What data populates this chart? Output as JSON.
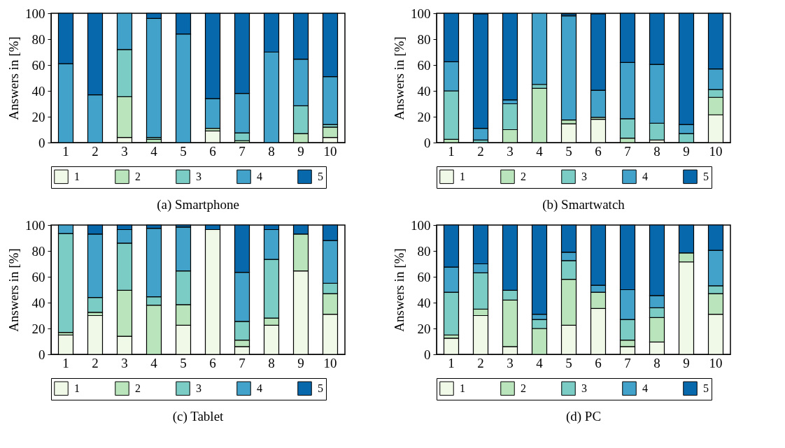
{
  "chart_data": [
    {
      "type": "bar",
      "stacked": true,
      "title": "(a) Smartphone",
      "ylabel": "Answers in [%]",
      "categories": [
        "1",
        "2",
        "3",
        "4",
        "5",
        "6",
        "7",
        "8",
        "9",
        "10"
      ],
      "ylim": [
        0,
        100
      ],
      "yticks": [
        0,
        20,
        40,
        60,
        80,
        100
      ],
      "legend": "bottom",
      "grid": false,
      "series": [
        {
          "name": "1",
          "color": "#f0f9e8",
          "values": [
            0,
            0,
            4,
            0,
            0,
            9,
            0,
            0,
            0,
            4
          ]
        },
        {
          "name": "2",
          "color": "#bae4bc",
          "values": [
            0,
            0,
            31.5,
            2.5,
            0,
            2,
            1.5,
            0,
            7,
            8
          ]
        },
        {
          "name": "3",
          "color": "#7bccc4",
          "values": [
            0,
            0,
            36.5,
            1.5,
            0,
            0,
            6,
            0,
            21.5,
            2
          ]
        },
        {
          "name": "4",
          "color": "#43a2ca",
          "values": [
            61,
            37,
            28,
            92,
            84,
            23,
            30.5,
            70,
            36,
            37
          ]
        },
        {
          "name": "5",
          "color": "#0868ac",
          "values": [
            39,
            63,
            0,
            4,
            16,
            66,
            62,
            30,
            35.5,
            49
          ]
        }
      ]
    },
    {
      "type": "bar",
      "stacked": true,
      "title": "(b) Smartwatch",
      "ylabel": "Answers in [%]",
      "categories": [
        "1",
        "2",
        "3",
        "4",
        "5",
        "6",
        "7",
        "8",
        "9",
        "10"
      ],
      "ylim": [
        0,
        100
      ],
      "yticks": [
        0,
        20,
        40,
        60,
        80,
        100
      ],
      "legend": "bottom",
      "grid": false,
      "series": [
        {
          "name": "1",
          "color": "#f0f9e8",
          "values": [
            0,
            0,
            0,
            0,
            14.5,
            18,
            0,
            2,
            0,
            21.5
          ]
        },
        {
          "name": "2",
          "color": "#bae4bc",
          "values": [
            2.5,
            null,
            10,
            42,
            3,
            1.5,
            3.5,
            0,
            0,
            13.5
          ]
        },
        {
          "name": "3",
          "color": "#7bccc4",
          "values": [
            37.5,
            2,
            20,
            3,
            null,
            null,
            15,
            13,
            7,
            6
          ]
        },
        {
          "name": "4",
          "color": "#43a2ca",
          "values": [
            22.5,
            9,
            3,
            55,
            80.5,
            21,
            43.5,
            45.5,
            7,
            16
          ]
        },
        {
          "name": "5",
          "color": "#0868ac",
          "values": [
            37.5,
            88.5,
            67,
            0,
            1.5,
            59,
            38,
            39.5,
            86,
            43
          ]
        }
      ]
    },
    {
      "type": "bar",
      "stacked": true,
      "title": "(c) Tablet",
      "ylabel": "Answers in [%]",
      "categories": [
        "1",
        "2",
        "3",
        "4",
        "5",
        "6",
        "7",
        "8",
        "9",
        "10"
      ],
      "ylim": [
        0,
        100
      ],
      "yticks": [
        0,
        20,
        40,
        60,
        80,
        100
      ],
      "legend": "bottom",
      "grid": false,
      "series": [
        {
          "name": "1",
          "color": "#f0f9e8",
          "values": [
            15,
            30,
            14,
            0,
            22.5,
            96.5,
            6,
            22.5,
            64.5,
            31
          ]
        },
        {
          "name": "2",
          "color": "#bae4bc",
          "values": [
            2,
            2.5,
            35.5,
            38,
            16,
            0,
            5,
            5.5,
            28.5,
            16
          ]
        },
        {
          "name": "3",
          "color": "#7bccc4",
          "values": [
            76.5,
            11.5,
            36.5,
            6.5,
            26,
            0,
            14.5,
            45.5,
            0,
            8
          ]
        },
        {
          "name": "4",
          "color": "#43a2ca",
          "values": [
            6.5,
            49,
            10.5,
            53,
            34,
            0,
            38,
            23,
            0,
            33
          ]
        },
        {
          "name": "5",
          "color": "#0868ac",
          "values": [
            0,
            7,
            3.5,
            2.5,
            1.5,
            3.5,
            36.5,
            3.5,
            7,
            12
          ]
        }
      ]
    },
    {
      "type": "bar",
      "stacked": true,
      "title": "(d) PC",
      "ylabel": "Answers in [%]",
      "categories": [
        "1",
        "2",
        "3",
        "4",
        "5",
        "6",
        "7",
        "8",
        "9",
        "10"
      ],
      "ylim": [
        0,
        100
      ],
      "yticks": [
        0,
        20,
        40,
        60,
        80,
        100
      ],
      "legend": "bottom",
      "grid": false,
      "series": [
        {
          "name": "1",
          "color": "#f0f9e8",
          "values": [
            12.5,
            30,
            6,
            0,
            22.5,
            35.5,
            6,
            9.5,
            71.5,
            31
          ]
        },
        {
          "name": "2",
          "color": "#bae4bc",
          "values": [
            2.5,
            5,
            36,
            20,
            35.5,
            12.5,
            5,
            19,
            7,
            16
          ]
        },
        {
          "name": "3",
          "color": "#7bccc4",
          "values": [
            33,
            28,
            7.5,
            7,
            14.5,
            0,
            16,
            7.5,
            0,
            6
          ]
        },
        {
          "name": "4",
          "color": "#43a2ca",
          "values": [
            19.5,
            7,
            0,
            4,
            6.5,
            5.5,
            23,
            9.5,
            0,
            27.5
          ]
        },
        {
          "name": "5",
          "color": "#0868ac",
          "values": [
            32.5,
            30,
            50.5,
            69,
            21,
            46.5,
            50,
            54.5,
            21.5,
            19.5
          ]
        }
      ]
    }
  ]
}
